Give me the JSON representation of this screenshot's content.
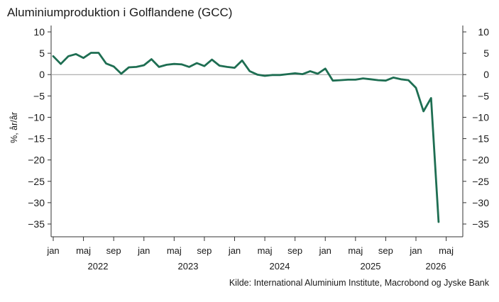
{
  "chart_data": {
    "type": "line",
    "title": "Aluminiumproduktion i Golflandene (GCC)",
    "ylabel": "%, år/år",
    "xlabel": "",
    "ylim": [
      -37,
      12
    ],
    "yticks": [
      10,
      5,
      0,
      -5,
      -10,
      -15,
      -20,
      -25,
      -30,
      -35
    ],
    "dual_y_axis": true,
    "zero_line": true,
    "grid": false,
    "line_color": "#1e6e52",
    "month_labels": [
      "jan",
      "maj",
      "sep",
      "jan",
      "maj",
      "sep",
      "jan",
      "maj",
      "sep",
      "jan",
      "maj",
      "sep",
      "jan",
      "maj"
    ],
    "year_labels": [
      "2022",
      "2023",
      "2024",
      "2025",
      "2026"
    ],
    "x": [
      "2022-01",
      "2022-02",
      "2022-03",
      "2022-04",
      "2022-05",
      "2022-06",
      "2022-07",
      "2022-08",
      "2022-09",
      "2022-10",
      "2022-11",
      "2022-12",
      "2023-01",
      "2023-02",
      "2023-03",
      "2023-04",
      "2023-05",
      "2023-06",
      "2023-07",
      "2023-08",
      "2023-09",
      "2023-10",
      "2023-11",
      "2023-12",
      "2024-01",
      "2024-02",
      "2024-03",
      "2024-04",
      "2024-05",
      "2024-06",
      "2024-07",
      "2024-08",
      "2024-09",
      "2024-10",
      "2024-11",
      "2024-12",
      "2025-01",
      "2025-02",
      "2025-03",
      "2025-04",
      "2025-05",
      "2025-06",
      "2025-07",
      "2025-08",
      "2025-09",
      "2025-10",
      "2025-11",
      "2025-12",
      "2026-01",
      "2026-02",
      "2026-03",
      "2026-04"
    ],
    "series": [
      {
        "values": [
          4.3,
          2.5,
          4.3,
          4.8,
          3.9,
          5.1,
          5.1,
          2.6,
          1.9,
          0.2,
          1.7,
          1.8,
          2.2,
          3.6,
          1.8,
          2.3,
          2.5,
          2.4,
          1.8,
          2.7,
          2.0,
          3.5,
          2.1,
          1.8,
          1.6,
          3.3,
          0.8,
          0.0,
          -0.3,
          -0.1,
          -0.1,
          0.1,
          0.3,
          0.1,
          0.8,
          0.2,
          1.4,
          -1.4,
          -1.3,
          -1.2,
          -1.2,
          -0.9,
          -1.1,
          -1.3,
          -1.4,
          -0.7,
          -1.1,
          -1.3,
          -3.1,
          -8.6,
          -5.5,
          -34.5
        ]
      }
    ]
  },
  "source": "Kilde: International Aluminium Institute, Macrobond og Jyske Bank"
}
